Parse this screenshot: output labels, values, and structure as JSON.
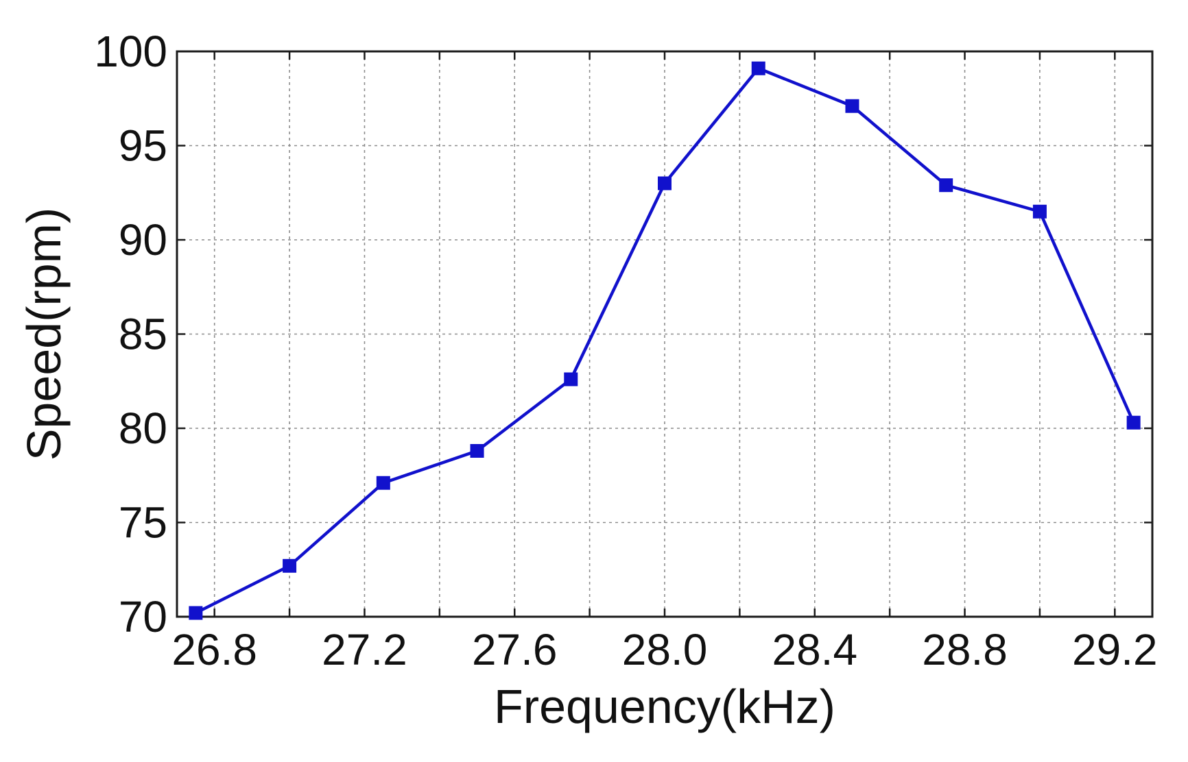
{
  "chart_data": {
    "type": "line",
    "title": "",
    "xlabel": "Frequency(kHz)",
    "ylabel": "Speed(rpm)",
    "xlim": [
      26.7,
      29.3
    ],
    "ylim": [
      70,
      100
    ],
    "x_ticks": [
      26.8,
      27.2,
      27.6,
      28.0,
      28.4,
      28.8,
      29.2
    ],
    "x_tick_labels": [
      "26.8",
      "27.2",
      "27.6",
      "28.0",
      "28.4",
      "28.8",
      "29.2"
    ],
    "x_minor_grid": [
      27.0,
      27.4,
      27.8,
      28.2,
      28.6,
      29.0
    ],
    "y_ticks": [
      70,
      75,
      80,
      85,
      90,
      95,
      100
    ],
    "y_tick_labels": [
      "70",
      "75",
      "80",
      "85",
      "90",
      "95",
      "100"
    ],
    "grid": true,
    "legend": "none",
    "marker": "square",
    "color": "#1111cc",
    "series": [
      {
        "x": [
          26.75,
          27.0,
          27.25,
          27.5,
          27.75,
          28.0,
          28.25,
          28.5,
          28.75,
          29.0,
          29.25
        ],
        "y": [
          70.2,
          72.7,
          77.1,
          78.8,
          82.6,
          93.0,
          99.1,
          97.1,
          92.9,
          91.5,
          80.3
        ]
      }
    ]
  }
}
